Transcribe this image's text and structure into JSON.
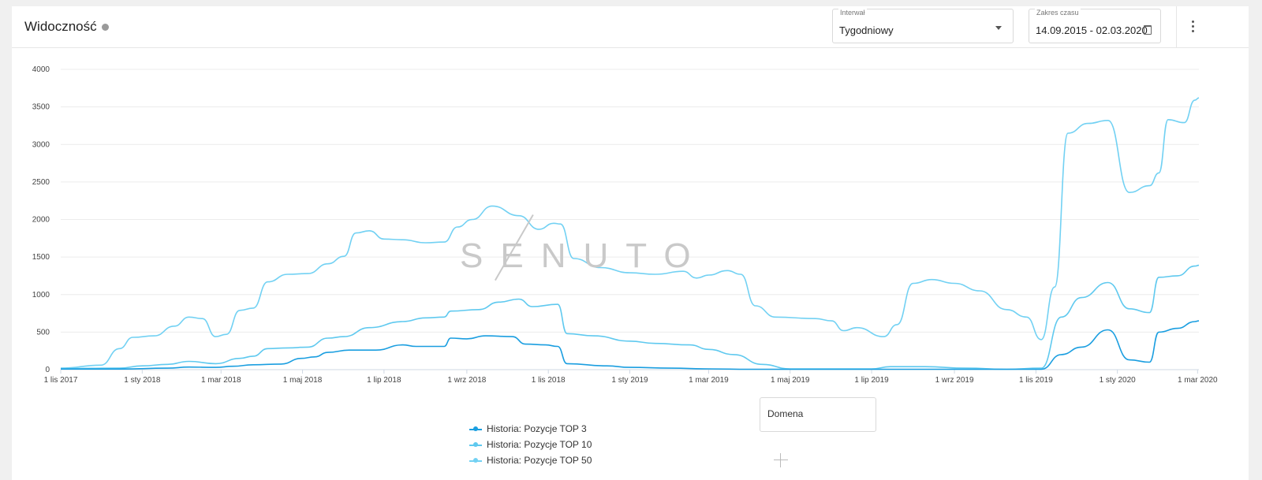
{
  "header": {
    "title": "Widoczność",
    "interval": {
      "label": "Interwał",
      "value": "Tygodniowy"
    },
    "range": {
      "label": "Zakres czasu",
      "value": "14.09.2015 - 02.03.2020"
    }
  },
  "watermark": "SENUTO",
  "domain_box": {
    "label": "Domena"
  },
  "chart_data": {
    "type": "line",
    "title": "",
    "xlabel": "",
    "ylabel": "",
    "ylim": [
      0,
      4000
    ],
    "y_ticks": [
      "0",
      "500",
      "1000",
      "1500",
      "2000",
      "2500",
      "3000",
      "3500",
      "4000"
    ],
    "x_ticks": [
      "1 lis 2017",
      "1 sty 2018",
      "1 mar 2018",
      "1 maj 2018",
      "1 lip 2018",
      "1 wrz 2018",
      "1 lis 2018",
      "1 sty 2019",
      "1 mar 2019",
      "1 maj 2019",
      "1 lip 2019",
      "1 wrz 2019",
      "1 lis 2019",
      "1 sty 2020",
      "1 mar 2020"
    ],
    "x_range": [
      "2017-11-01",
      "2020-03-02"
    ],
    "grid": true,
    "legend": "bottom",
    "series": [
      {
        "name": "Historia: Pozycje TOP 3",
        "color": "#1a9ee0",
        "points": [
          [
            "2017-11-01",
            8
          ],
          [
            "2017-12-15",
            8
          ],
          [
            "2018-01-20",
            20
          ],
          [
            "2018-02-05",
            35
          ],
          [
            "2018-02-25",
            30
          ],
          [
            "2018-03-10",
            45
          ],
          [
            "2018-03-25",
            65
          ],
          [
            "2018-04-15",
            75
          ],
          [
            "2018-04-30",
            150
          ],
          [
            "2018-05-10",
            170
          ],
          [
            "2018-05-20",
            230
          ],
          [
            "2018-06-05",
            260
          ],
          [
            "2018-06-25",
            260
          ],
          [
            "2018-07-15",
            330
          ],
          [
            "2018-07-25",
            310
          ],
          [
            "2018-08-15",
            310
          ],
          [
            "2018-08-20",
            420
          ],
          [
            "2018-09-01",
            410
          ],
          [
            "2018-09-15",
            450
          ],
          [
            "2018-10-05",
            440
          ],
          [
            "2018-10-15",
            340
          ],
          [
            "2018-10-30",
            330
          ],
          [
            "2018-11-08",
            310
          ],
          [
            "2018-11-15",
            80
          ],
          [
            "2018-12-15",
            50
          ],
          [
            "2019-01-01",
            30
          ],
          [
            "2019-02-01",
            20
          ],
          [
            "2019-03-01",
            10
          ],
          [
            "2019-04-01",
            5
          ],
          [
            "2019-05-01",
            5
          ],
          [
            "2019-10-01",
            5
          ],
          [
            "2019-11-05",
            5
          ],
          [
            "2019-11-20",
            200
          ],
          [
            "2019-12-05",
            300
          ],
          [
            "2019-12-25",
            530
          ],
          [
            "2020-01-10",
            130
          ],
          [
            "2020-01-25",
            100
          ],
          [
            "2020-02-01",
            500
          ],
          [
            "2020-02-15",
            550
          ],
          [
            "2020-02-28",
            640
          ],
          [
            "2020-03-02",
            650
          ]
        ]
      },
      {
        "name": "Historia: Pozycje TOP 10",
        "color": "#5fc9ef",
        "points": [
          [
            "2017-11-01",
            15
          ],
          [
            "2017-12-15",
            20
          ],
          [
            "2018-01-01",
            50
          ],
          [
            "2018-01-20",
            70
          ],
          [
            "2018-02-05",
            110
          ],
          [
            "2018-02-25",
            80
          ],
          [
            "2018-03-15",
            150
          ],
          [
            "2018-03-25",
            180
          ],
          [
            "2018-04-05",
            280
          ],
          [
            "2018-04-20",
            290
          ],
          [
            "2018-05-05",
            300
          ],
          [
            "2018-05-20",
            420
          ],
          [
            "2018-06-01",
            440
          ],
          [
            "2018-06-20",
            560
          ],
          [
            "2018-07-15",
            640
          ],
          [
            "2018-08-01",
            690
          ],
          [
            "2018-08-15",
            700
          ],
          [
            "2018-08-20",
            780
          ],
          [
            "2018-09-10",
            800
          ],
          [
            "2018-09-25",
            900
          ],
          [
            "2018-10-10",
            940
          ],
          [
            "2018-10-20",
            840
          ],
          [
            "2018-11-08",
            870
          ],
          [
            "2018-11-15",
            480
          ],
          [
            "2018-12-05",
            450
          ],
          [
            "2019-01-01",
            380
          ],
          [
            "2019-01-20",
            350
          ],
          [
            "2019-02-15",
            330
          ],
          [
            "2019-03-01",
            270
          ],
          [
            "2019-03-20",
            200
          ],
          [
            "2019-04-10",
            70
          ],
          [
            "2019-05-01",
            10
          ],
          [
            "2019-07-01",
            10
          ],
          [
            "2019-07-15",
            40
          ],
          [
            "2019-08-10",
            40
          ],
          [
            "2019-09-10",
            20
          ],
          [
            "2019-10-10",
            5
          ],
          [
            "2019-11-05",
            20
          ],
          [
            "2019-11-20",
            700
          ],
          [
            "2019-12-05",
            960
          ],
          [
            "2019-12-25",
            1160
          ],
          [
            "2020-01-10",
            810
          ],
          [
            "2020-01-25",
            760
          ],
          [
            "2020-02-01",
            1230
          ],
          [
            "2020-02-15",
            1250
          ],
          [
            "2020-02-28",
            1380
          ],
          [
            "2020-03-02",
            1390
          ]
        ]
      },
      {
        "name": "Historia: Pozycje TOP 50",
        "color": "#72d1f3",
        "points": [
          [
            "2017-11-01",
            20
          ],
          [
            "2017-12-01",
            60
          ],
          [
            "2017-12-15",
            280
          ],
          [
            "2017-12-25",
            430
          ],
          [
            "2018-01-10",
            450
          ],
          [
            "2018-01-25",
            580
          ],
          [
            "2018-02-05",
            700
          ],
          [
            "2018-02-15",
            680
          ],
          [
            "2018-02-25",
            440
          ],
          [
            "2018-03-05",
            470
          ],
          [
            "2018-03-15",
            790
          ],
          [
            "2018-03-25",
            820
          ],
          [
            "2018-04-05",
            1170
          ],
          [
            "2018-04-20",
            1270
          ],
          [
            "2018-05-05",
            1280
          ],
          [
            "2018-05-20",
            1410
          ],
          [
            "2018-06-01",
            1510
          ],
          [
            "2018-06-10",
            1820
          ],
          [
            "2018-06-20",
            1850
          ],
          [
            "2018-07-01",
            1740
          ],
          [
            "2018-07-15",
            1730
          ],
          [
            "2018-08-01",
            1690
          ],
          [
            "2018-08-15",
            1700
          ],
          [
            "2018-08-25",
            1900
          ],
          [
            "2018-09-05",
            2000
          ],
          [
            "2018-09-20",
            2180
          ],
          [
            "2018-10-10",
            2050
          ],
          [
            "2018-10-25",
            1870
          ],
          [
            "2018-11-05",
            1950
          ],
          [
            "2018-11-10",
            1940
          ],
          [
            "2018-11-20",
            1480
          ],
          [
            "2018-12-10",
            1360
          ],
          [
            "2019-01-01",
            1290
          ],
          [
            "2019-01-20",
            1270
          ],
          [
            "2019-02-10",
            1310
          ],
          [
            "2019-02-20",
            1220
          ],
          [
            "2019-03-01",
            1260
          ],
          [
            "2019-03-15",
            1320
          ],
          [
            "2019-03-25",
            1270
          ],
          [
            "2019-04-05",
            850
          ],
          [
            "2019-04-20",
            700
          ],
          [
            "2019-05-20",
            680
          ],
          [
            "2019-06-01",
            650
          ],
          [
            "2019-06-10",
            520
          ],
          [
            "2019-06-20",
            560
          ],
          [
            "2019-07-10",
            440
          ],
          [
            "2019-07-20",
            600
          ],
          [
            "2019-08-01",
            1150
          ],
          [
            "2019-08-15",
            1200
          ],
          [
            "2019-09-01",
            1150
          ],
          [
            "2019-09-20",
            1050
          ],
          [
            "2019-10-10",
            800
          ],
          [
            "2019-10-25",
            700
          ],
          [
            "2019-11-05",
            400
          ],
          [
            "2019-11-15",
            1100
          ],
          [
            "2019-11-25",
            3150
          ],
          [
            "2019-12-10",
            3280
          ],
          [
            "2019-12-25",
            3320
          ],
          [
            "2020-01-10",
            2360
          ],
          [
            "2020-01-25",
            2450
          ],
          [
            "2020-02-01",
            2620
          ],
          [
            "2020-02-08",
            3330
          ],
          [
            "2020-02-20",
            3290
          ],
          [
            "2020-02-28",
            3590
          ],
          [
            "2020-03-02",
            3620
          ]
        ]
      }
    ]
  }
}
